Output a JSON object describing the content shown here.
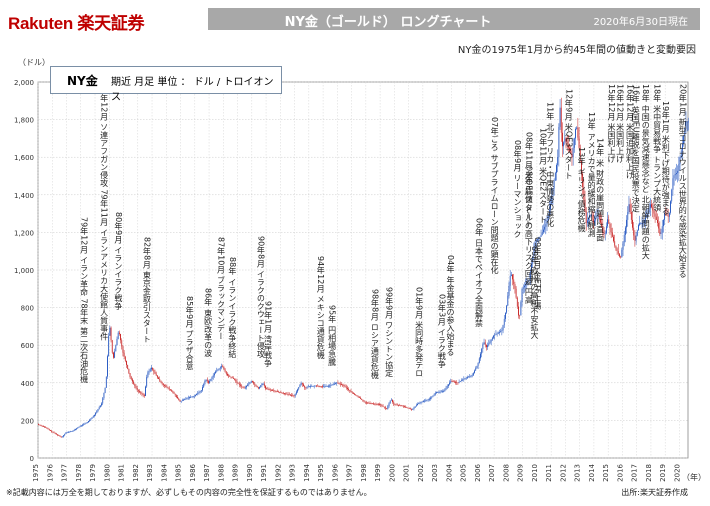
{
  "header": {
    "logo": "Rakuten 楽天証券",
    "title": "NY金（ゴールド） ロングチャート",
    "date": "2020年6月30日現在",
    "subtitle": "NY金の1975年1月から約45年間の値動きと変動要因"
  },
  "legend": {
    "series": "NY金",
    "description": "期近 月足 単位 ： ドル / トロイオンス"
  },
  "footer": {
    "note": "※記載内容には万全を期しておりますが、必ずしもその内容の完全性を保証するものではありません。",
    "source": "出所:楽天証券作成"
  },
  "chart_data": {
    "type": "candlestick",
    "yunit": "（ドル）",
    "xunit": "（年）",
    "ylim": [
      0,
      2000
    ],
    "yticks": [
      0,
      200,
      400,
      600,
      800,
      1000,
      1200,
      1400,
      1600,
      1800,
      2000
    ],
    "ytick_labels": [
      "0",
      "200",
      "400",
      "600",
      "800",
      "1,000",
      "1,200",
      "1,400",
      "1,600",
      "1,800",
      "2,000"
    ],
    "xlim": [
      1975,
      2020.6
    ],
    "xticks": [
      1975,
      1976,
      1977,
      1978,
      1979,
      1980,
      1981,
      1982,
      1983,
      1984,
      1985,
      1986,
      1987,
      1988,
      1989,
      1990,
      1991,
      1992,
      1993,
      1994,
      1995,
      1996,
      1997,
      1998,
      1999,
      2000,
      2001,
      2002,
      2003,
      2004,
      2005,
      2006,
      2007,
      2008,
      2009,
      2010,
      2011,
      2012,
      2013,
      2014,
      2015,
      2016,
      2017,
      2018,
      2019,
      2020
    ],
    "grid": true,
    "price_path": [
      [
        1975.0,
        180
      ],
      [
        1975.5,
        165
      ],
      [
        1976.0,
        140
      ],
      [
        1976.7,
        110
      ],
      [
        1977.0,
        135
      ],
      [
        1977.5,
        145
      ],
      [
        1978.0,
        170
      ],
      [
        1978.5,
        190
      ],
      [
        1979.0,
        230
      ],
      [
        1979.5,
        290
      ],
      [
        1979.8,
        390
      ],
      [
        1980.0,
        650
      ],
      [
        1980.05,
        720
      ],
      [
        1980.3,
        520
      ],
      [
        1980.7,
        680
      ],
      [
        1981.0,
        560
      ],
      [
        1981.5,
        430
      ],
      [
        1982.0,
        360
      ],
      [
        1982.5,
        330
      ],
      [
        1982.7,
        450
      ],
      [
        1983.0,
        480
      ],
      [
        1983.4,
        430
      ],
      [
        1983.8,
        390
      ],
      [
        1984.0,
        380
      ],
      [
        1984.5,
        350
      ],
      [
        1985.0,
        300
      ],
      [
        1985.5,
        320
      ],
      [
        1986.0,
        330
      ],
      [
        1986.5,
        360
      ],
      [
        1986.8,
        420
      ],
      [
        1987.0,
        400
      ],
      [
        1987.5,
        460
      ],
      [
        1987.95,
        490
      ],
      [
        1988.3,
        440
      ],
      [
        1988.8,
        420
      ],
      [
        1989.0,
        400
      ],
      [
        1989.5,
        370
      ],
      [
        1990.0,
        410
      ],
      [
        1990.5,
        370
      ],
      [
        1990.8,
        400
      ],
      [
        1991.0,
        370
      ],
      [
        1991.5,
        360
      ],
      [
        1992.0,
        350
      ],
      [
        1992.5,
        340
      ],
      [
        1993.0,
        330
      ],
      [
        1993.5,
        400
      ],
      [
        1993.8,
        370
      ],
      [
        1994.0,
        380
      ],
      [
        1994.5,
        385
      ],
      [
        1995.0,
        380
      ],
      [
        1995.5,
        385
      ],
      [
        1996.0,
        400
      ],
      [
        1996.5,
        385
      ],
      [
        1997.0,
        350
      ],
      [
        1997.5,
        325
      ],
      [
        1998.0,
        295
      ],
      [
        1998.5,
        290
      ],
      [
        1999.0,
        285
      ],
      [
        1999.5,
        260
      ],
      [
        1999.8,
        315
      ],
      [
        2000.0,
        285
      ],
      [
        2000.5,
        280
      ],
      [
        2001.0,
        265
      ],
      [
        2001.3,
        258
      ],
      [
        2001.7,
        290
      ],
      [
        2002.0,
        300
      ],
      [
        2002.5,
        315
      ],
      [
        2003.0,
        350
      ],
      [
        2003.5,
        355
      ],
      [
        2004.0,
        410
      ],
      [
        2004.5,
        400
      ],
      [
        2005.0,
        425
      ],
      [
        2005.5,
        440
      ],
      [
        2005.9,
        500
      ],
      [
        2006.3,
        620
      ],
      [
        2006.5,
        590
      ],
      [
        2007.0,
        650
      ],
      [
        2007.6,
        680
      ],
      [
        2007.9,
        800
      ],
      [
        2008.2,
        990
      ],
      [
        2008.5,
        900
      ],
      [
        2008.8,
        730
      ],
      [
        2009.0,
        900
      ],
      [
        2009.5,
        950
      ],
      [
        2009.9,
        1150
      ],
      [
        2010.3,
        1180
      ],
      [
        2010.7,
        1250
      ],
      [
        2011.0,
        1350
      ],
      [
        2011.3,
        1500
      ],
      [
        2011.5,
        1600
      ],
      [
        2011.65,
        1890
      ],
      [
        2011.8,
        1650
      ],
      [
        2012.0,
        1700
      ],
      [
        2012.5,
        1600
      ],
      [
        2012.8,
        1780
      ],
      [
        2013.0,
        1650
      ],
      [
        2013.3,
        1400
      ],
      [
        2013.5,
        1250
      ],
      [
        2013.8,
        1300
      ],
      [
        2014.0,
        1250
      ],
      [
        2014.3,
        1300
      ],
      [
        2014.8,
        1180
      ],
      [
        2015.0,
        1270
      ],
      [
        2015.5,
        1130
      ],
      [
        2015.9,
        1060
      ],
      [
        2016.3,
        1250
      ],
      [
        2016.5,
        1350
      ],
      [
        2016.9,
        1150
      ],
      [
        2017.2,
        1250
      ],
      [
        2017.5,
        1250
      ],
      [
        2017.8,
        1300
      ],
      [
        2018.0,
        1350
      ],
      [
        2018.5,
        1250
      ],
      [
        2018.7,
        1180
      ],
      [
        2019.0,
        1300
      ],
      [
        2019.3,
        1280
      ],
      [
        2019.6,
        1500
      ],
      [
        2019.9,
        1520
      ],
      [
        2020.2,
        1650
      ],
      [
        2020.5,
        1790
      ]
    ],
    "annotations": [
      {
        "x": 1978.2,
        "y": 190,
        "text": "79年12月 イラン革命 78年末 第二次石油危機"
      },
      {
        "x": 1979.6,
        "y": 760,
        "text": "79年12月 ソ連アフガン侵攻 79年11月 イランアメリカ大使館人質事件"
      },
      {
        "x": 1980.6,
        "y": 700,
        "text": "80年9月 イランイラク戦争"
      },
      {
        "x": 1982.6,
        "y": 520,
        "text": "82年8月 東京金取引スタート"
      },
      {
        "x": 1985.6,
        "y": 380,
        "text": "85年9月 プラザ合意"
      },
      {
        "x": 1986.9,
        "y": 470,
        "text": "86年 東欧改革の波"
      },
      {
        "x": 1987.8,
        "y": 520,
        "text": "87年10月 ブラックマンデー"
      },
      {
        "x": 1988.6,
        "y": 460,
        "text": "88年 イランイラク戦争終結"
      },
      {
        "x": 1990.6,
        "y": 440,
        "text": "90年8月 イラクのクウェート侵攻"
      },
      {
        "x": 1991.1,
        "y": 400,
        "text": "91年1月 湾岸戦争"
      },
      {
        "x": 1994.8,
        "y": 420,
        "text": "94年12月 メキシコ通貨危機"
      },
      {
        "x": 1995.6,
        "y": 420,
        "text": "95年 円相場急騰"
      },
      {
        "x": 1998.6,
        "y": 330,
        "text": "98年8月 ロシア通貨危機"
      },
      {
        "x": 1999.6,
        "y": 340,
        "text": "99年9月 ワシントン協定"
      },
      {
        "x": 2001.7,
        "y": 340,
        "text": "01年9月 米同時多発テロ"
      },
      {
        "x": 2003.3,
        "y": 395,
        "text": "03年3月 イラク戦争"
      },
      {
        "x": 2003.9,
        "y": 470,
        "text": "04年 年金基金の参入始まる"
      },
      {
        "x": 2005.9,
        "y": 620,
        "text": "06年 日本でペイオフ全面解禁"
      },
      {
        "x": 2007.0,
        "y": 900,
        "text": "07年ごろ サブプライムローン問題の顕在化"
      },
      {
        "x": 2008.6,
        "y": 1080,
        "text": "08年9月 リーマンショック"
      },
      {
        "x": 2009.4,
        "y": 1080,
        "text": "08年11月 米QE1スタート"
      },
      {
        "x": 2010.0,
        "y": 650,
        "text": "09年9月 金ETF上場"
      },
      {
        "x": 2009.4,
        "y": 680,
        "text": "08年 底値 ドルの高下リスク回避 円高"
      },
      {
        "x": 2009.8,
        "y": 560,
        "text": "09年 欧州の高利不安拡大"
      },
      {
        "x": 2010.4,
        "y": 1100,
        "text": "10年11月 米QE2スタート"
      },
      {
        "x": 2010.9,
        "y": 1150,
        "text": "11年 北アフリカ・中東情勢の悪化"
      },
      {
        "x": 2012.2,
        "y": 1350,
        "text": "12年9月 米QE3スタート"
      },
      {
        "x": 2013.1,
        "y": 1130,
        "text": "13年 ギリシャ債務危機"
      },
      {
        "x": 2014.4,
        "y": 1050,
        "text": "14年 米 財政の崖問題に直面"
      },
      {
        "x": 2013.8,
        "y": 1100,
        "text": "13年 アメリカで量的緩和縮小観測"
      },
      {
        "x": 2015.2,
        "y": 1600,
        "text": "15年12月 米国利上げ"
      },
      {
        "x": 2015.8,
        "y": 1600,
        "text": "16年12月 米国利上げ"
      },
      {
        "x": 2016.5,
        "y": 1800,
        "text": "16年12月 米国追加利上げ"
      },
      {
        "x": 2016.9,
        "y": 1200,
        "text": "16年 英国EU離脱を国民投票で決定"
      },
      {
        "x": 2017.6,
        "y": 1050,
        "text": "18年 中国の景気減速懸念など 北朝鮮問題の拡大"
      },
      {
        "x": 2018.4,
        "y": 1250,
        "text": "18年 米中貿易戦争 トランプ大統領"
      },
      {
        "x": 2019.0,
        "y": 1200,
        "text": "19年1月 米利下げ期待が強まる"
      },
      {
        "x": 2020.2,
        "y": 1450,
        "text": "20年1月 新型コロナウイルス世界的な感染拡大始まる"
      }
    ]
  }
}
